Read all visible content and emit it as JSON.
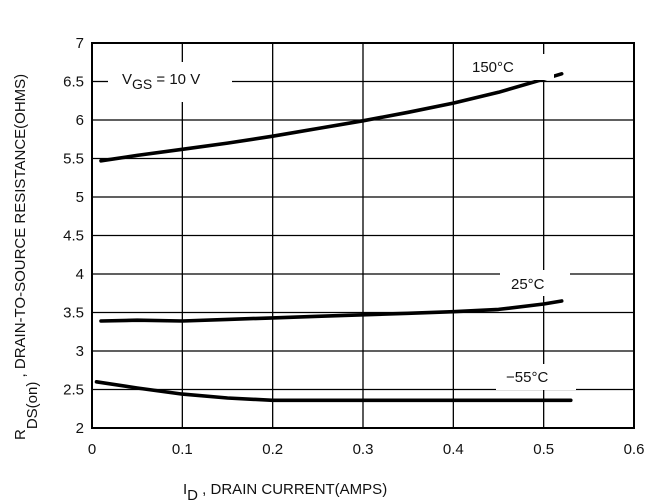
{
  "chart_data": {
    "type": "line",
    "title": "",
    "xlabel": {
      "symbol": "I",
      "subscript": "D",
      "text": " , DRAIN CURRENT(AMPS)"
    },
    "ylabel": {
      "symbol": "R",
      "subscript": "DS(on)",
      "text": " , DRAIN-TO-SOURCE RESISTANCE(OHMS)"
    },
    "xlim": [
      0,
      0.6
    ],
    "ylim": [
      2,
      7
    ],
    "xticks": [
      "0",
      "0.1",
      "0.2",
      "0.3",
      "0.4",
      "0.5",
      "0.6"
    ],
    "yticks": [
      "2",
      "2.5",
      "3",
      "3.5",
      "4",
      "4.5",
      "5",
      "5.5",
      "6",
      "6.5",
      "7"
    ],
    "grid": true,
    "annotation": {
      "symbol": "V",
      "subscript": "GS",
      "text": " = 10 V"
    },
    "series": [
      {
        "name": "150°C",
        "x": [
          0.01,
          0.05,
          0.1,
          0.15,
          0.2,
          0.25,
          0.3,
          0.35,
          0.4,
          0.45,
          0.5,
          0.52
        ],
        "y": [
          5.47,
          5.54,
          5.62,
          5.7,
          5.79,
          5.89,
          5.99,
          6.1,
          6.22,
          6.36,
          6.53,
          6.6
        ]
      },
      {
        "name": "25°C",
        "x": [
          0.01,
          0.05,
          0.1,
          0.15,
          0.2,
          0.25,
          0.3,
          0.35,
          0.4,
          0.45,
          0.5,
          0.52
        ],
        "y": [
          3.39,
          3.4,
          3.39,
          3.41,
          3.43,
          3.45,
          3.47,
          3.49,
          3.51,
          3.54,
          3.61,
          3.65
        ]
      },
      {
        "name": "−55°C",
        "x": [
          0.005,
          0.05,
          0.1,
          0.15,
          0.2,
          0.25,
          0.3,
          0.35,
          0.4,
          0.45,
          0.5,
          0.53
        ],
        "y": [
          2.6,
          2.52,
          2.44,
          2.39,
          2.36,
          2.36,
          2.36,
          2.36,
          2.36,
          2.36,
          2.36,
          2.36
        ]
      }
    ]
  }
}
